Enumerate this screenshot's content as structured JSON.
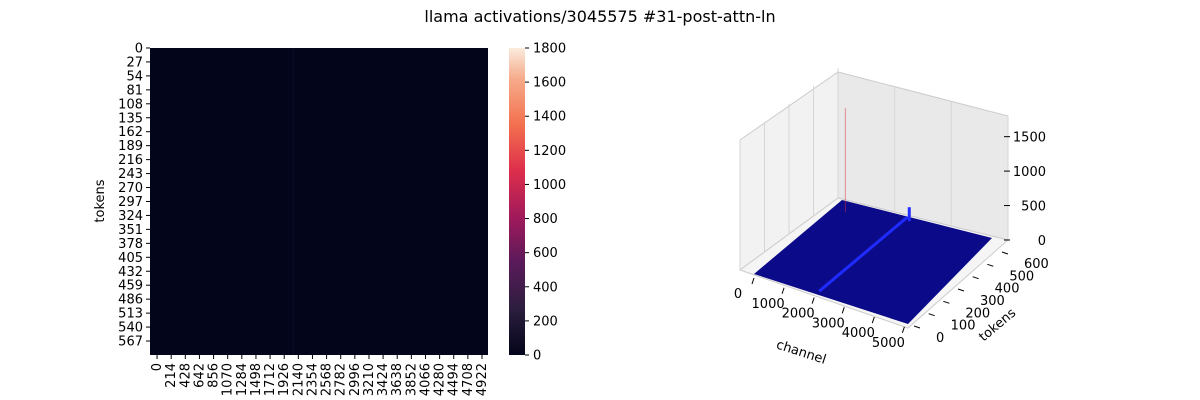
{
  "figure_title": "llama activations/3045575 #31-post-attn-ln",
  "colors": {
    "heatmap_bg": "#03051a",
    "surface": "#0b0b8a",
    "surface_spike": "#1f2bff",
    "spike_red": "#e0303b"
  },
  "chart_data": [
    {
      "type": "heatmap",
      "title": "",
      "xlabel": "",
      "ylabel": "tokens",
      "x_ticks": [
        "0",
        "214",
        "428",
        "642",
        "856",
        "1070",
        "1284",
        "1498",
        "1712",
        "1926",
        "2140",
        "2354",
        "2568",
        "2782",
        "2996",
        "3210",
        "3424",
        "3638",
        "3852",
        "4066",
        "4280",
        "4494",
        "4708",
        "4922"
      ],
      "y_ticks": [
        "0",
        "27",
        "54",
        "81",
        "108",
        "135",
        "162",
        "189",
        "216",
        "243",
        "270",
        "297",
        "324",
        "351",
        "378",
        "405",
        "432",
        "459",
        "486",
        "513",
        "540",
        "567"
      ],
      "x_range": [
        0,
        5120
      ],
      "y_range": [
        0,
        594
      ],
      "colorbar": {
        "min": 0,
        "max": 1800,
        "ticks": [
          "0",
          "200",
          "400",
          "600",
          "800",
          "1000",
          "1200",
          "1400",
          "1600",
          "1800"
        ]
      },
      "highlight_channel": 2170
    },
    {
      "type": "surface3d",
      "xlabel": "channel",
      "ylabel": "tokens",
      "x_ticks": [
        "0",
        "1000",
        "2000",
        "3000",
        "4000",
        "5000"
      ],
      "y_ticks": [
        "0",
        "100",
        "200",
        "300",
        "400",
        "500",
        "600"
      ],
      "z_ticks": [
        "0",
        "500",
        "1000",
        "1500"
      ],
      "x_range": [
        0,
        5120
      ],
      "y_range": [
        0,
        600
      ],
      "z_range": [
        0,
        1800
      ],
      "spike_channel": 2170,
      "spike_value": 1800
    }
  ]
}
